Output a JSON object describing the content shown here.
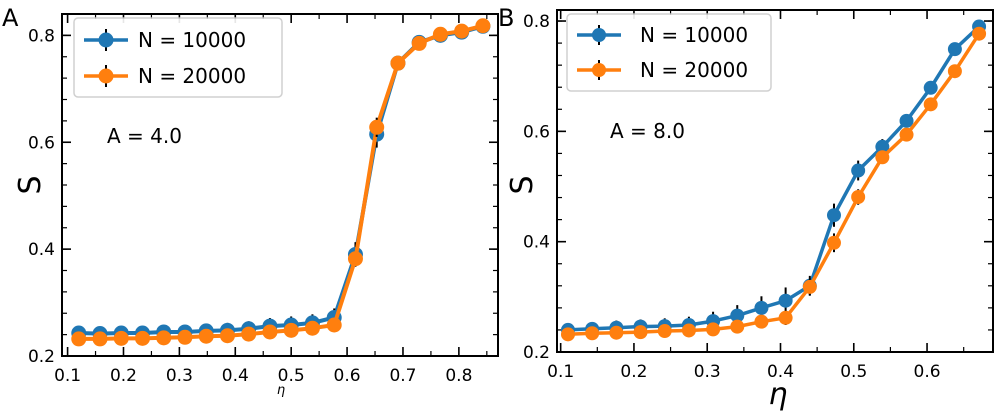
{
  "colors": {
    "blue": "#1f77b4",
    "orange": "#ff7f0e",
    "errorbar": "#000000"
  },
  "chart_data": [
    {
      "type": "line",
      "panel_label": "A",
      "annotation": "A = 4.0",
      "xlabel": "η",
      "ylabel": "S",
      "xlim": [
        0.09,
        0.87
      ],
      "ylim": [
        0.2,
        0.84
      ],
      "xticks": [
        "0.1",
        "0.2",
        "0.3",
        "0.4",
        "0.5",
        "0.6",
        "0.7",
        "0.8"
      ],
      "yticks": [
        "0.2",
        "0.4",
        "0.6",
        "0.8"
      ],
      "legend_position": "upper-left",
      "x": [
        0.12,
        0.158,
        0.196,
        0.234,
        0.272,
        0.31,
        0.348,
        0.386,
        0.424,
        0.462,
        0.5,
        0.538,
        0.577,
        0.615,
        0.653,
        0.691,
        0.729,
        0.767,
        0.805,
        0.843
      ],
      "series": [
        {
          "name": "N = 10000",
          "color": "blue",
          "values": [
            0.243,
            0.242,
            0.243,
            0.243,
            0.245,
            0.245,
            0.247,
            0.248,
            0.251,
            0.256,
            0.258,
            0.262,
            0.272,
            0.39,
            0.615,
            0.748,
            0.787,
            0.8,
            0.806,
            0.817
          ],
          "errors": [
            0.011,
            0.012,
            0.012,
            0.012,
            0.013,
            0.013,
            0.013,
            0.014,
            0.014,
            0.015,
            0.016,
            0.016,
            0.017,
            0.023,
            0.025,
            0.011,
            0.008,
            0.008,
            0.007,
            0.007
          ]
        },
        {
          "name": "N = 20000",
          "color": "orange",
          "values": [
            0.232,
            0.232,
            0.233,
            0.233,
            0.234,
            0.235,
            0.237,
            0.238,
            0.241,
            0.245,
            0.248,
            0.252,
            0.258,
            0.382,
            0.628,
            0.748,
            0.785,
            0.802,
            0.808,
            0.818
          ],
          "errors": [
            0.005,
            0.005,
            0.005,
            0.006,
            0.006,
            0.006,
            0.006,
            0.006,
            0.007,
            0.007,
            0.007,
            0.008,
            0.008,
            0.012,
            0.018,
            0.008,
            0.006,
            0.006,
            0.005,
            0.005
          ]
        }
      ]
    },
    {
      "type": "line",
      "panel_label": "B",
      "annotation": "A = 8.0",
      "xlabel": "η",
      "ylabel": "S",
      "xlim": [
        0.095,
        0.69
      ],
      "ylim": [
        0.2,
        0.82
      ],
      "xticks": [
        "0.1",
        "0.2",
        "0.3",
        "0.4",
        "0.5",
        "0.6"
      ],
      "yticks": [
        "0.2",
        "0.4",
        "0.6",
        "0.8"
      ],
      "legend_position": "upper-left",
      "x": [
        0.11,
        0.143,
        0.176,
        0.209,
        0.242,
        0.275,
        0.308,
        0.341,
        0.374,
        0.407,
        0.44,
        0.473,
        0.506,
        0.539,
        0.572,
        0.605,
        0.638,
        0.671
      ],
      "series": [
        {
          "name": "N = 10000",
          "color": "blue",
          "values": [
            0.24,
            0.242,
            0.244,
            0.246,
            0.247,
            0.249,
            0.256,
            0.266,
            0.28,
            0.293,
            0.32,
            0.448,
            0.529,
            0.572,
            0.619,
            0.679,
            0.749,
            0.79
          ],
          "errors": [
            0.012,
            0.012,
            0.013,
            0.013,
            0.014,
            0.015,
            0.017,
            0.019,
            0.021,
            0.024,
            0.018,
            0.021,
            0.018,
            0.014,
            0.012,
            0.011,
            0.011,
            0.008
          ]
        },
        {
          "name": "N = 20000",
          "color": "orange",
          "values": [
            0.232,
            0.234,
            0.235,
            0.236,
            0.238,
            0.239,
            0.241,
            0.246,
            0.255,
            0.262,
            0.318,
            0.398,
            0.481,
            0.553,
            0.594,
            0.649,
            0.709,
            0.777
          ],
          "errors": [
            0.006,
            0.006,
            0.006,
            0.007,
            0.007,
            0.008,
            0.009,
            0.01,
            0.012,
            0.013,
            0.015,
            0.017,
            0.014,
            0.012,
            0.01,
            0.009,
            0.009,
            0.007
          ]
        }
      ]
    }
  ]
}
